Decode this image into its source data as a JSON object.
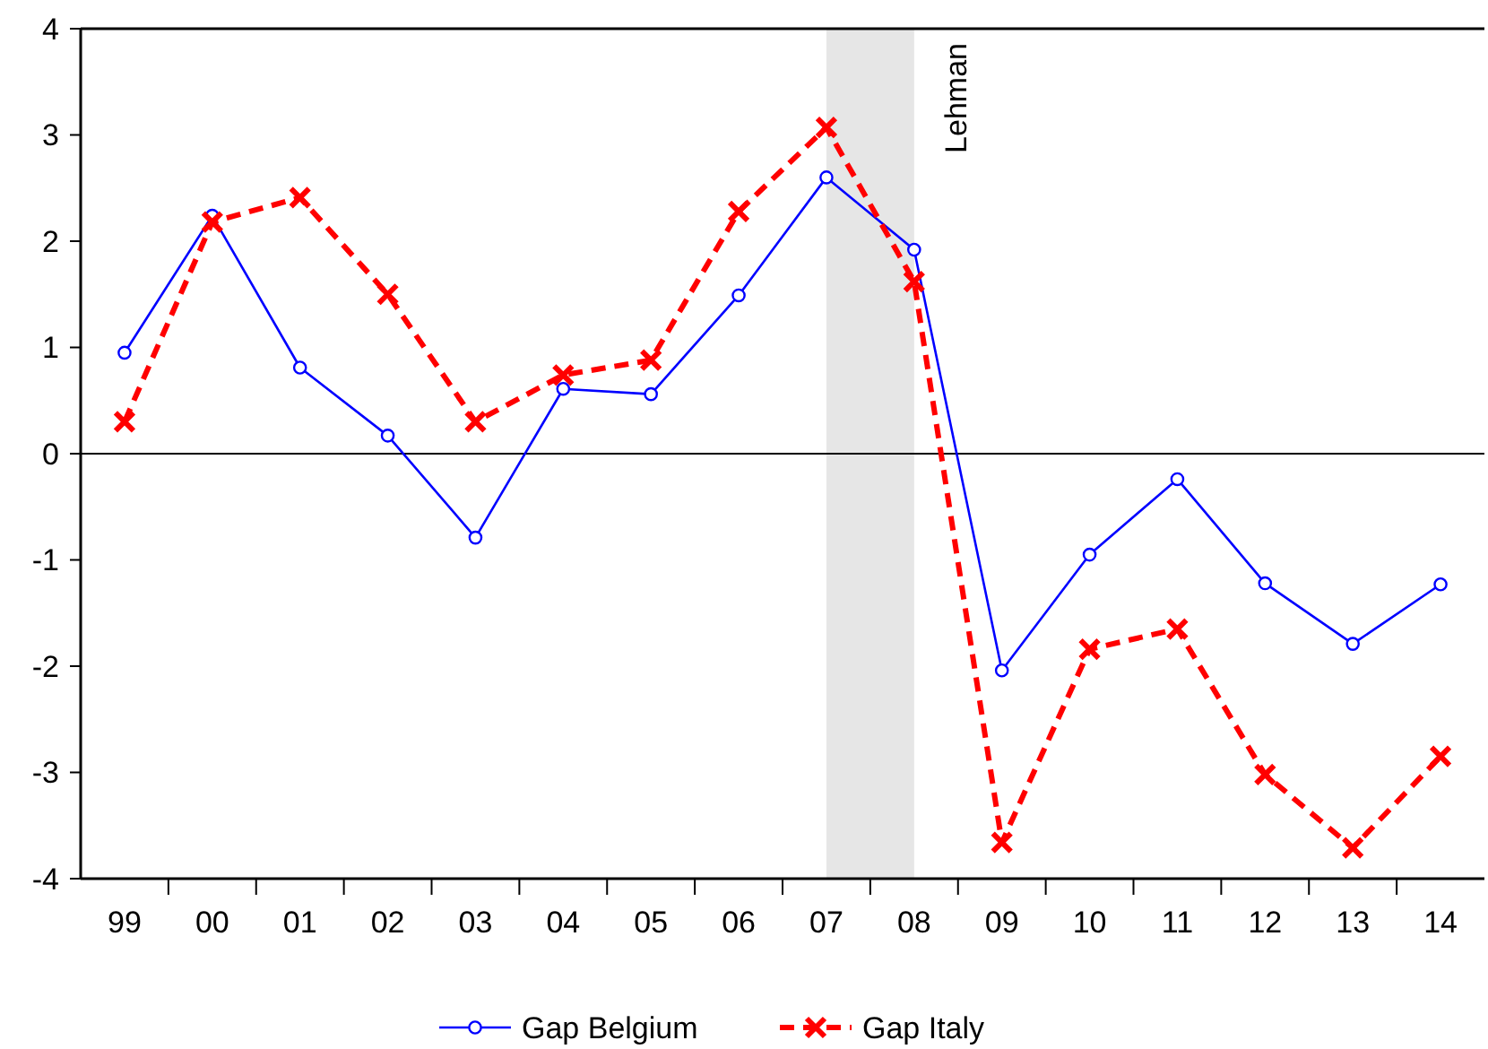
{
  "chart_data": {
    "type": "line",
    "categories": [
      "99",
      "00",
      "01",
      "02",
      "03",
      "04",
      "05",
      "06",
      "07",
      "08",
      "09",
      "10",
      "11",
      "12",
      "13",
      "14"
    ],
    "series": [
      {
        "name": "Gap Belgium",
        "color": "#0000ff",
        "marker": "circle",
        "line_style": "solid",
        "values": [
          0.95,
          2.24,
          0.81,
          0.17,
          -0.79,
          0.61,
          0.56,
          1.49,
          2.6,
          1.92,
          -2.04,
          -0.95,
          -0.24,
          -1.22,
          -1.79,
          -1.23
        ]
      },
      {
        "name": "Gap Italy",
        "color": "#ff0000",
        "marker": "cross",
        "line_style": "dashed",
        "values": [
          0.3,
          2.18,
          2.41,
          1.5,
          0.3,
          0.74,
          0.88,
          2.28,
          3.07,
          1.62,
          -3.66,
          -1.84,
          -1.65,
          -3.02,
          -3.71,
          -2.85
        ]
      }
    ],
    "ylim": [
      -4,
      4
    ],
    "yticks": [
      -4,
      -3,
      -2,
      -1,
      0,
      1,
      2,
      3,
      4
    ],
    "ref_lines": [
      {
        "axis": "y",
        "value": 0,
        "color": "#000000"
      }
    ],
    "bands": [
      {
        "axis": "x",
        "from": "07",
        "to": "08",
        "label": "Lehman",
        "color": "#e6e6e6"
      }
    ],
    "grid": false,
    "legend": "bottom"
  }
}
